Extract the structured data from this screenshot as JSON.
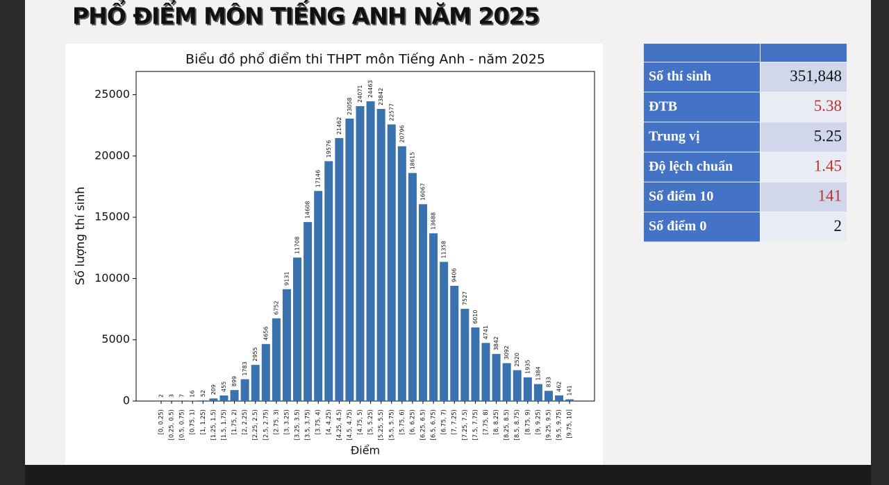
{
  "slide_title": "PHỔ ĐIỂM MÔN TIẾNG ANH NĂM 2025",
  "chart_data": {
    "type": "bar",
    "title": "Biểu đồ phổ điểm thi THPT môn Tiếng Anh - năm 2025",
    "x_label": "Điểm",
    "y_label": "Số lượng thí sinh",
    "color": "#3a72b0",
    "grid": false,
    "categories": [
      "[0, 0.25)",
      "[0.25, 0.5)",
      "[0.5, 0.75)",
      "[0.75, 1)",
      "[1, 1.25)",
      "[1.25, 1.5)",
      "[1.5, 1.75)",
      "[1.75, 2)",
      "[2, 2.25)",
      "[2.25, 2.5)",
      "[2.5, 2.75)",
      "[2.75, 3)",
      "[3, 3.25)",
      "[3.25, 3.5)",
      "[3.5, 3.75)",
      "[3.75, 4)",
      "[4, 4.25)",
      "[4.25, 4.5)",
      "[4.5, 4.75)",
      "[4.75, 5)",
      "[5, 5.25)",
      "[5.25, 5.5)",
      "[5.5, 5.75)",
      "[5.75, 6)",
      "[6, 6.25)",
      "[6.25, 6.5)",
      "[6.5, 6.75)",
      "[6.75, 7)",
      "[7, 7.25)",
      "[7.25, 7.5)",
      "[7.5, 7.75)",
      "[7.75, 8)",
      "[8, 8.25)",
      "[8.25, 8.5)",
      "[8.5, 8.75)",
      "[8.75, 9)",
      "[9, 9.25)",
      "[9.25, 9.5)",
      "[9.5, 9.75)",
      "[9.75, 10]"
    ],
    "values": [
      2,
      3,
      7,
      16,
      52,
      209,
      455,
      899,
      1783,
      2955,
      4656,
      6752,
      9131,
      11708,
      14608,
      17146,
      19576,
      21462,
      23058,
      24071,
      24463,
      23842,
      22577,
      20796,
      18615,
      16067,
      13688,
      11358,
      9406,
      7527,
      6010,
      4741,
      3842,
      3092,
      2520,
      1935,
      1384,
      833,
      462,
      141
    ],
    "ylim": [
      0,
      26900
    ],
    "yticks": [
      0,
      5000,
      10000,
      15000,
      20000,
      25000
    ]
  },
  "table": {
    "rows": [
      {
        "label": "Số thí sinh",
        "value": "351,848",
        "color": "#111111"
      },
      {
        "label": "ĐTB",
        "value": "5.38",
        "color": "#c0302b"
      },
      {
        "label": "Trung vị",
        "value": "5.25",
        "color": "#111111"
      },
      {
        "label": "Độ lệch chuẩn",
        "value": "1.45",
        "color": "#c0302b"
      },
      {
        "label": "Số điểm 10",
        "value": "141",
        "color": "#c0302b"
      },
      {
        "label": "Số điểm 0",
        "value": "2",
        "color": "#111111"
      }
    ]
  }
}
